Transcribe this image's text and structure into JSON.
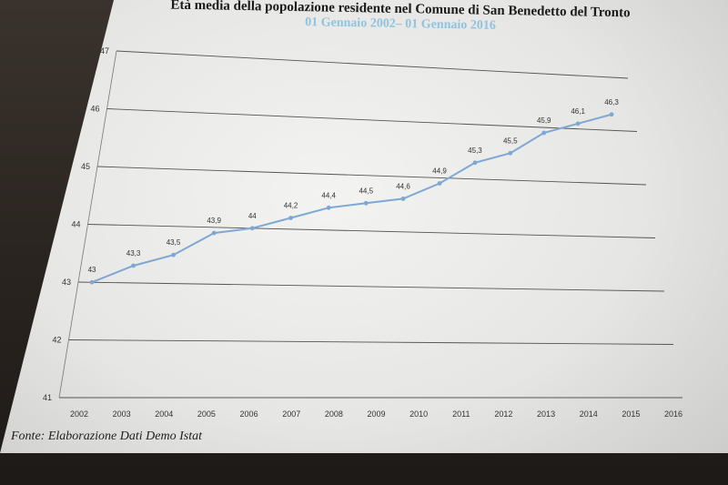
{
  "chart_data": {
    "type": "line",
    "title": "Età media della popolazione residente nel Comune di San Benedetto del Tronto",
    "subtitle": "01 Gennaio 2002– 01 Gennaio 2016",
    "xlabel": "",
    "ylabel": "",
    "categories": [
      "2002",
      "2003",
      "2004",
      "2005",
      "2006",
      "2007",
      "2008",
      "2009",
      "2010",
      "2011",
      "2012",
      "2013",
      "2014",
      "2015",
      "2016"
    ],
    "yticks": [
      "41",
      "42",
      "43",
      "44",
      "45",
      "46",
      "47"
    ],
    "ylim": [
      41,
      47
    ],
    "grid": true,
    "legend": "none",
    "series": [
      {
        "values": [
          43,
          43.3,
          43.5,
          43.9,
          44,
          44.2,
          44.4,
          44.5,
          44.6,
          44.9,
          45.3,
          45.5,
          45.9,
          46.1,
          46.3
        ],
        "labels": [
          "43",
          "43,3",
          "43,5",
          "43,9",
          "44",
          "44,2",
          "44,4",
          "44,5",
          "44,6",
          "44,9",
          "45,3",
          "45,5",
          "45,9",
          "46,1",
          "46,3"
        ],
        "color": "#7ea7d4"
      }
    ]
  },
  "source": "Fonte: Elaborazione Dati Demo Istat"
}
